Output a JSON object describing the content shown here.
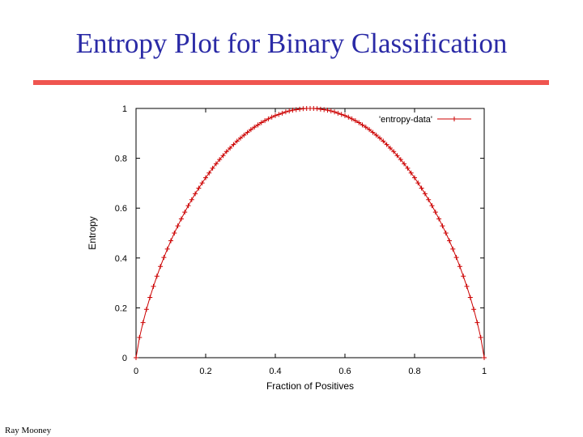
{
  "slide": {
    "title": "Entropy Plot for Binary Classification",
    "footer": "Ray Mooney"
  },
  "colors": {
    "title": "#2a2aa6",
    "rule": "#ef5550",
    "series": "#cc0000"
  },
  "chart_data": {
    "type": "line",
    "title": "",
    "xlabel": "Fraction of Positives",
    "ylabel": "Entropy",
    "xlim": [
      0,
      1
    ],
    "ylim": [
      0,
      1
    ],
    "x_ticks": [
      "0",
      "0.2",
      "0.4",
      "0.6",
      "0.8",
      "1"
    ],
    "y_ticks": [
      "0",
      "0.2",
      "0.4",
      "0.6",
      "0.8",
      "1"
    ],
    "grid": false,
    "legend_position": "top-right",
    "series": [
      {
        "name": "'entropy-data'",
        "marker": "plus",
        "x": [
          0.0,
          0.01,
          0.02,
          0.03,
          0.04,
          0.05,
          0.06,
          0.07,
          0.08,
          0.09,
          0.1,
          0.11,
          0.12,
          0.13,
          0.14,
          0.15,
          0.16,
          0.17,
          0.18,
          0.19,
          0.2,
          0.21,
          0.22,
          0.23,
          0.24,
          0.25,
          0.26,
          0.27,
          0.28,
          0.29,
          0.3,
          0.31,
          0.32,
          0.33,
          0.34,
          0.35,
          0.36,
          0.37,
          0.38,
          0.39,
          0.4,
          0.41,
          0.42,
          0.43,
          0.44,
          0.45,
          0.46,
          0.47,
          0.48,
          0.49,
          0.5,
          0.51,
          0.52,
          0.53,
          0.54,
          0.55,
          0.56,
          0.57,
          0.58,
          0.59,
          0.6,
          0.61,
          0.62,
          0.63,
          0.64,
          0.65,
          0.66,
          0.67,
          0.68,
          0.69,
          0.7,
          0.71,
          0.72,
          0.73,
          0.74,
          0.75,
          0.76,
          0.77,
          0.78,
          0.79,
          0.8,
          0.81,
          0.82,
          0.83,
          0.84,
          0.85,
          0.86,
          0.87,
          0.88,
          0.89,
          0.9,
          0.91,
          0.92,
          0.93,
          0.94,
          0.95,
          0.96,
          0.97,
          0.98,
          0.99,
          1.0
        ],
        "y": [
          0.0,
          0.081,
          0.141,
          0.194,
          0.242,
          0.286,
          0.327,
          0.366,
          0.402,
          0.436,
          0.469,
          0.5,
          0.529,
          0.557,
          0.584,
          0.61,
          0.634,
          0.658,
          0.68,
          0.701,
          0.722,
          0.741,
          0.76,
          0.778,
          0.795,
          0.811,
          0.827,
          0.841,
          0.855,
          0.869,
          0.881,
          0.893,
          0.904,
          0.915,
          0.925,
          0.934,
          0.943,
          0.951,
          0.958,
          0.965,
          0.971,
          0.976,
          0.981,
          0.986,
          0.99,
          0.993,
          0.995,
          0.997,
          0.999,
          1.0,
          1.0,
          1.0,
          0.999,
          0.997,
          0.995,
          0.993,
          0.99,
          0.986,
          0.981,
          0.976,
          0.971,
          0.965,
          0.958,
          0.951,
          0.943,
          0.934,
          0.925,
          0.915,
          0.904,
          0.893,
          0.881,
          0.869,
          0.855,
          0.841,
          0.827,
          0.811,
          0.795,
          0.778,
          0.76,
          0.741,
          0.722,
          0.701,
          0.68,
          0.658,
          0.634,
          0.61,
          0.584,
          0.557,
          0.529,
          0.5,
          0.469,
          0.436,
          0.402,
          0.366,
          0.327,
          0.286,
          0.242,
          0.194,
          0.141,
          0.081,
          0.0
        ]
      }
    ]
  }
}
